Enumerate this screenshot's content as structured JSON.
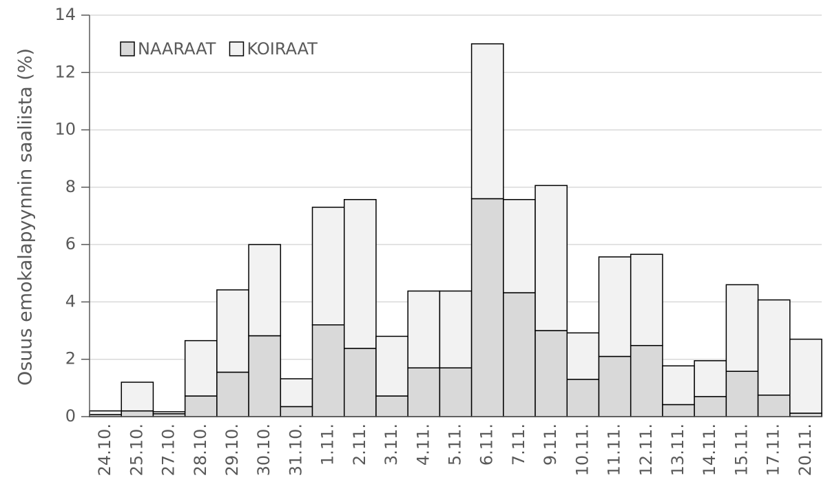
{
  "chart_data": {
    "type": "stacked_bar",
    "y_label": "Osuus emokalapyynnin saaliista (%)",
    "categories": [
      "24.10.",
      "25.10.",
      "27.10.",
      "28.10.",
      "29.10.",
      "30.10.",
      "31.10.",
      "1.11.",
      "2.11.",
      "3.11.",
      "4.11.",
      "5.11.",
      "6.11.",
      "7.11.",
      "9.11.",
      "10.11.",
      "11.11.",
      "12.11.",
      "13.11.",
      "14.11.",
      "15.11.",
      "17.11.",
      "20.11."
    ],
    "series": [
      {
        "name": "NAARAAT",
        "color": "#d9d9d9",
        "values": [
          0.07,
          0.2,
          0.1,
          0.72,
          1.55,
          2.82,
          0.35,
          3.2,
          2.38,
          0.72,
          1.7,
          1.7,
          7.6,
          4.32,
          3.0,
          1.3,
          2.1,
          2.48,
          0.42,
          0.7,
          1.58,
          0.75,
          0.12
        ]
      },
      {
        "name": "KOIRAAT",
        "color": "#f2f2f2",
        "values": [
          0.13,
          1.0,
          0.07,
          1.93,
          2.87,
          3.18,
          0.97,
          4.1,
          5.19,
          2.08,
          2.68,
          2.68,
          5.4,
          3.25,
          5.06,
          1.62,
          3.47,
          3.18,
          1.35,
          1.25,
          3.02,
          3.32,
          2.58
        ]
      }
    ],
    "ylim": [
      0,
      14
    ],
    "yticks": [
      0,
      2,
      4,
      6,
      8,
      10,
      12,
      14
    ],
    "grid": true,
    "legend": "top-left"
  }
}
